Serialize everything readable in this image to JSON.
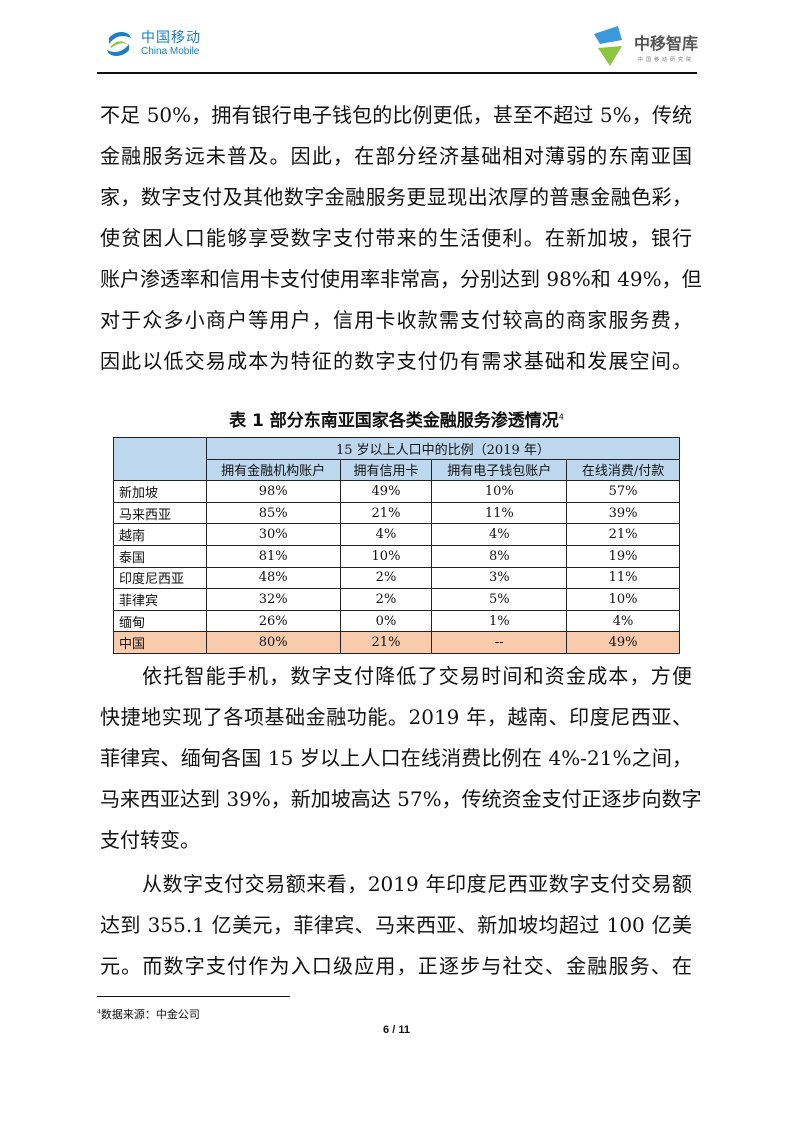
{
  "header": {
    "left_logo_cn": "中国移动",
    "left_logo_en": "China Mobile",
    "right_logo_cn": "中移智库",
    "right_logo_sub": "中国移动研究院"
  },
  "para1": [
    "不足 50%，拥有银行电子钱包的比例更低，甚至不超过 5%，传统",
    "金融服务远未普及。因此，在部分经济基础相对薄弱的东南亚国",
    "家，数字支付及其他数字金融服务更显现出浓厚的普惠金融色彩，",
    "使贫困人口能够享受数字支付带来的生活便利。在新加坡，银行",
    "账户渗透率和信用卡支付使用率非常高，分别达到 98%和 49%，但",
    "对于众多小商户等用户，信用卡收款需支付较高的商家服务费，",
    "因此以低交易成本为特征的数字支付仍有需求基础和发展空间。"
  ],
  "table": {
    "caption": "表 1  部分东南亚国家各类金融服务渗透情况",
    "caption_note": "4",
    "group_header": "15 岁以上人口中的比例（2019 年）",
    "columns": [
      "拥有金融机构账户",
      "拥有信用卡",
      "拥有电子钱包账户",
      "在线消费/付款"
    ],
    "rows": [
      {
        "country": "新加坡",
        "values": [
          "98%",
          "49%",
          "10%",
          "57%"
        ]
      },
      {
        "country": "马来西亚",
        "values": [
          "85%",
          "21%",
          "11%",
          "39%"
        ]
      },
      {
        "country": "越南",
        "values": [
          "30%",
          "4%",
          "4%",
          "21%"
        ]
      },
      {
        "country": "泰国",
        "values": [
          "81%",
          "10%",
          "8%",
          "19%"
        ]
      },
      {
        "country": "印度尼西亚",
        "values": [
          "48%",
          "2%",
          "3%",
          "11%"
        ]
      },
      {
        "country": "菲律宾",
        "values": [
          "32%",
          "2%",
          "5%",
          "10%"
        ]
      },
      {
        "country": "缅甸",
        "values": [
          "26%",
          "0%",
          "1%",
          "4%"
        ]
      },
      {
        "country": "中国",
        "values": [
          "80%",
          "21%",
          "--",
          "49%"
        ]
      }
    ],
    "highlight_color": "#f8cbad",
    "header_color": "#bdd7ee"
  },
  "para2": [
    "依托智能手机，数字支付降低了交易时间和资金成本，方便",
    "快捷地实现了各项基础金融功能。2019 年，越南、印度尼西亚、",
    "菲律宾、缅甸各国 15 岁以上人口在线消费比例在 4%-21%之间，",
    "马来西亚达到 39%，新加坡高达 57%，传统资金支付正逐步向数字",
    "支付转变。"
  ],
  "para3": [
    "从数字支付交易额来看，2019 年印度尼西亚数字支付交易额",
    "达到 355.1 亿美元，菲律宾、马来西亚、新加坡均超过 100 亿美",
    "元。而数字支付作为入口级应用，正逐步与社交、金融服务、在"
  ],
  "footnote": {
    "mark": "4",
    "text": "数据来源：中金公司"
  },
  "page_number": "6 / 11"
}
